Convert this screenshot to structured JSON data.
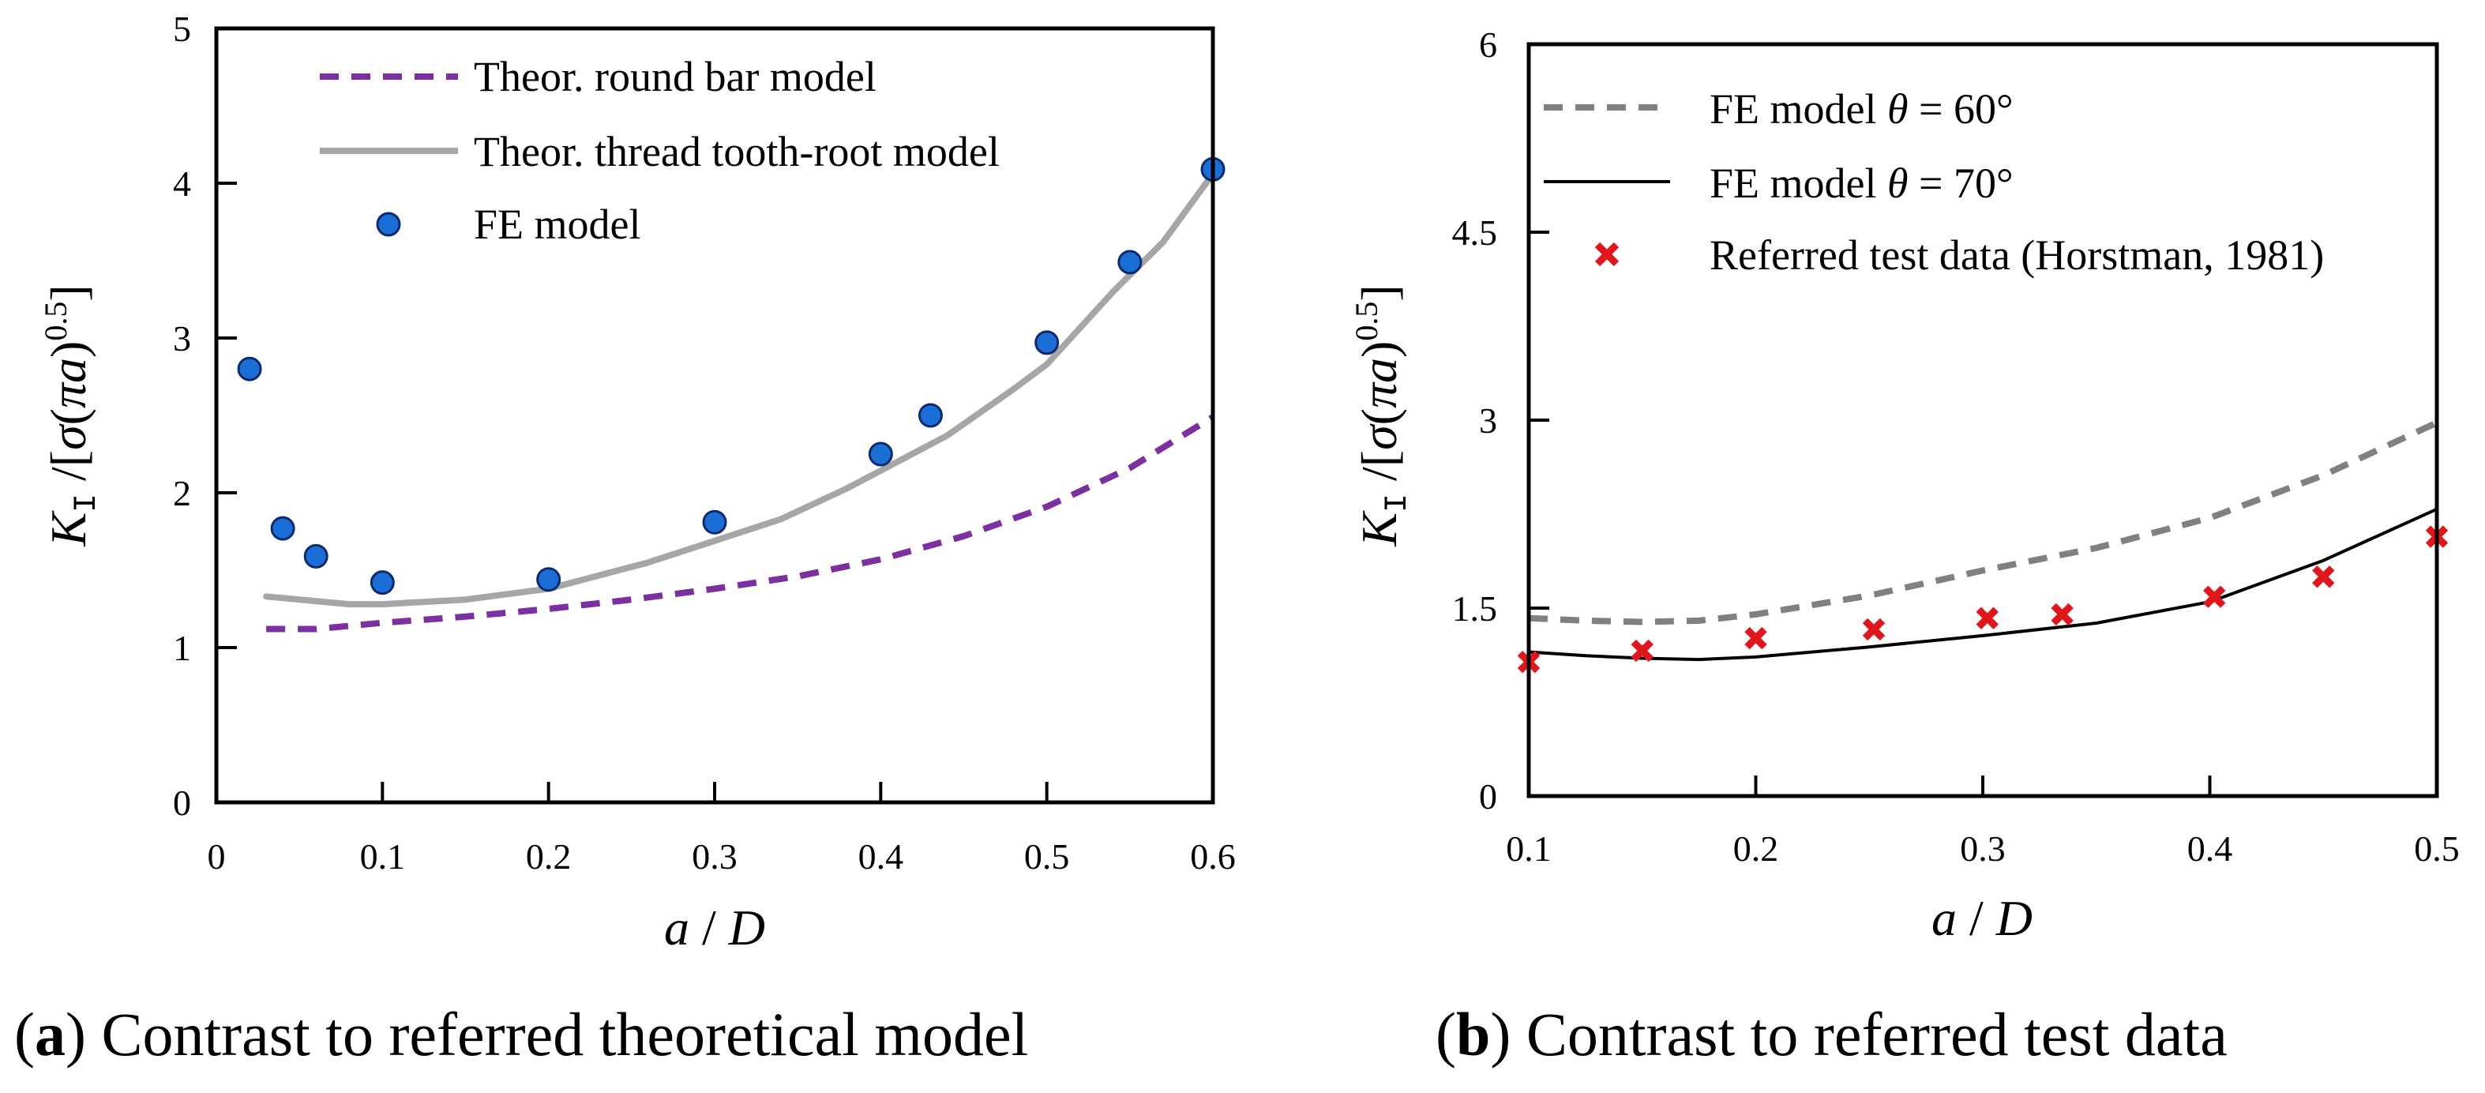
{
  "figure": {
    "caption_a": {
      "letter": "a",
      "text": " Contrast to referred theoretical model"
    },
    "caption_b": {
      "letter": "b",
      "text": " Contrast to referred test data"
    }
  },
  "chart_data": [
    {
      "id": "a",
      "type": "line",
      "xlabel": "a / D",
      "ylabel": "K_I / [σ(πa)^0.5]",
      "xlim": [
        0,
        0.6
      ],
      "ylim": [
        0,
        5
      ],
      "xticks": [
        "0",
        "0.1",
        "0.2",
        "0.3",
        "0.4",
        "0.5",
        "0.6"
      ],
      "yticks": [
        "0",
        "1",
        "2",
        "3",
        "4",
        "5"
      ],
      "legend_position": "top-left",
      "series": [
        {
          "name": "Theor. round bar model",
          "style": "dashed",
          "color": "#7b2fa0",
          "x": [
            0.03,
            0.06,
            0.1,
            0.15,
            0.2,
            0.25,
            0.3,
            0.35,
            0.4,
            0.45,
            0.5,
            0.55,
            0.6
          ],
          "y": [
            1.12,
            1.12,
            1.16,
            1.2,
            1.25,
            1.31,
            1.38,
            1.46,
            1.57,
            1.72,
            1.91,
            2.16,
            2.49
          ]
        },
        {
          "name": "Theor. thread tooth-root model",
          "style": "solid",
          "color": "#a6a6a6",
          "x": [
            0.03,
            0.05,
            0.08,
            0.1,
            0.15,
            0.2,
            0.26,
            0.3,
            0.34,
            0.38,
            0.44,
            0.48,
            0.5,
            0.54,
            0.57,
            0.6
          ],
          "y": [
            1.33,
            1.31,
            1.28,
            1.28,
            1.31,
            1.38,
            1.55,
            1.69,
            1.83,
            2.03,
            2.37,
            2.67,
            2.83,
            3.3,
            3.62,
            4.06
          ]
        },
        {
          "name": "FE model",
          "style": "markers",
          "color": "#1a6ed6",
          "x": [
            0.02,
            0.04,
            0.06,
            0.1,
            0.2,
            0.3,
            0.4,
            0.43,
            0.5,
            0.55,
            0.6
          ],
          "y": [
            2.8,
            1.77,
            1.59,
            1.42,
            1.44,
            1.81,
            2.25,
            2.5,
            2.97,
            3.49,
            4.09
          ]
        }
      ]
    },
    {
      "id": "b",
      "type": "line",
      "xlabel": "a / D",
      "ylabel": "K_I / [σ(πa)^0.5]",
      "xlim": [
        0.1,
        0.5
      ],
      "ylim": [
        0,
        6
      ],
      "xticks": [
        "0.1",
        "0.2",
        "0.3",
        "0.4",
        "0.5"
      ],
      "yticks": [
        "0",
        "1.5",
        "3",
        "4.5",
        "6"
      ],
      "legend_position": "top-left",
      "series": [
        {
          "name": "FE model θ = 60°",
          "style": "dashed",
          "color": "#808080",
          "x": [
            0.1,
            0.125,
            0.15,
            0.175,
            0.2,
            0.25,
            0.3,
            0.35,
            0.4,
            0.45,
            0.5
          ],
          "y": [
            1.42,
            1.4,
            1.39,
            1.4,
            1.45,
            1.6,
            1.8,
            1.98,
            2.22,
            2.56,
            2.98
          ]
        },
        {
          "name": "FE model θ = 70°",
          "style": "solid",
          "color": "#000000",
          "x": [
            0.1,
            0.125,
            0.15,
            0.175,
            0.2,
            0.25,
            0.3,
            0.35,
            0.4,
            0.45,
            0.5
          ],
          "y": [
            1.15,
            1.12,
            1.1,
            1.09,
            1.11,
            1.19,
            1.28,
            1.38,
            1.55,
            1.88,
            2.29
          ]
        },
        {
          "name": "Referred test data (Horstman, 1981)",
          "style": "crosses",
          "color": "#e0161b",
          "x": [
            0.1,
            0.15,
            0.2,
            0.252,
            0.302,
            0.335,
            0.402,
            0.45,
            0.5
          ],
          "y": [
            1.07,
            1.16,
            1.26,
            1.33,
            1.42,
            1.45,
            1.59,
            1.75,
            2.07
          ]
        }
      ]
    }
  ]
}
